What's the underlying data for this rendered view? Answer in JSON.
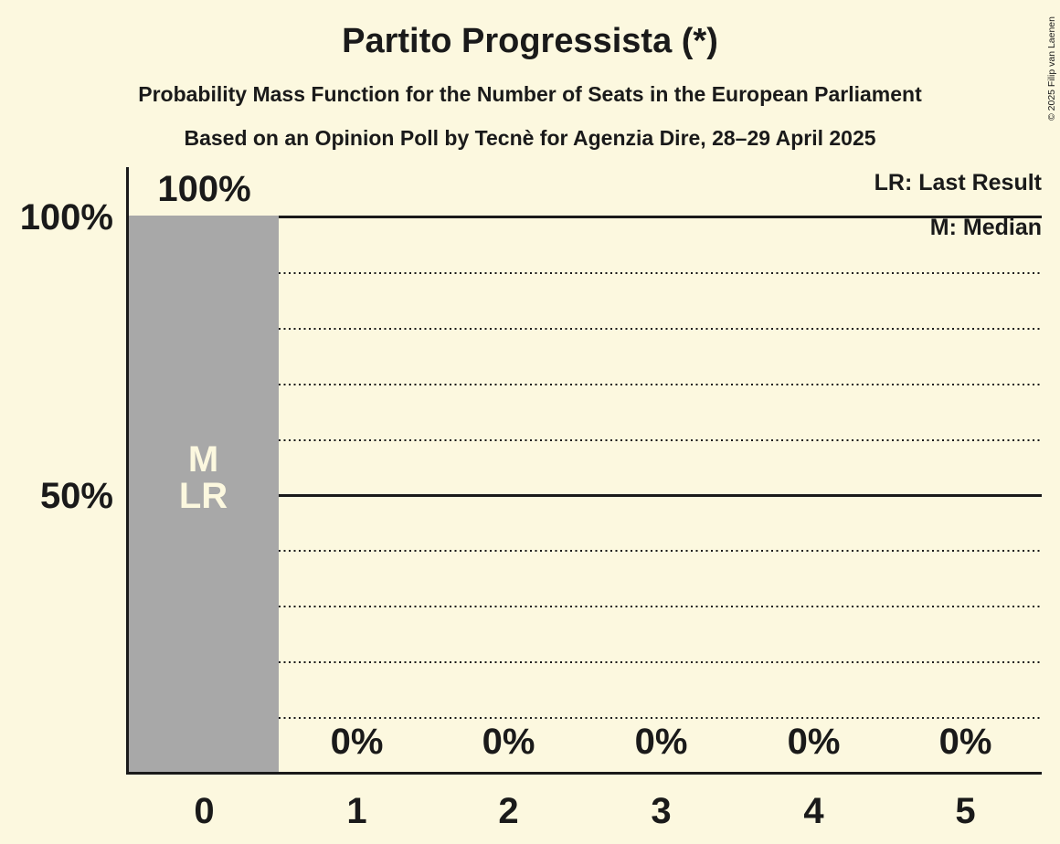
{
  "header": {
    "title": "Partito Progressista (*)",
    "subtitle": "Probability Mass Function for the Number of Seats in the European Parliament",
    "source": "Based on an Opinion Poll by Tecnè for Agenzia Dire, 28–29 April 2025"
  },
  "legend": {
    "lr": "LR: Last Result",
    "m": "M: Median"
  },
  "bar0": {
    "median_marker": "M",
    "last_result_marker": "LR"
  },
  "footer": {
    "copyright": "© 2025 Filip van Laenen"
  },
  "colors": {
    "background": "#FCF8DF",
    "bar": "#A8A8A8",
    "ink": "#1A1A1A"
  },
  "chart_data": {
    "type": "bar",
    "title": "Partito Progressista (*)",
    "subtitle": "Probability Mass Function for the Number of Seats in the European Parliament",
    "source_line": "Based on an Opinion Poll by Tecnè for Agenzia Dire, 28–29 April 2025",
    "xlabel": "",
    "ylabel": "",
    "categories": [
      "0",
      "1",
      "2",
      "3",
      "4",
      "5"
    ],
    "values": [
      100,
      0,
      0,
      0,
      0,
      0
    ],
    "value_labels": [
      "100%",
      "0%",
      "0%",
      "0%",
      "0%",
      "0%"
    ],
    "ylim": [
      0,
      100
    ],
    "ytick_labels": [
      "100%",
      "50%"
    ],
    "ytick_values": [
      100,
      50
    ],
    "grid": "horizontal dotted lines every 10%, solid lines at 50% and 100%",
    "legend_entries": [
      "LR: Last Result",
      "M: Median"
    ],
    "legend_position": "top-right",
    "annotations": [
      {
        "category": "0",
        "labels": [
          "M",
          "LR"
        ],
        "meaning": [
          "Median",
          "Last Result"
        ]
      }
    ],
    "median_category": "0",
    "last_result_category": "0"
  }
}
